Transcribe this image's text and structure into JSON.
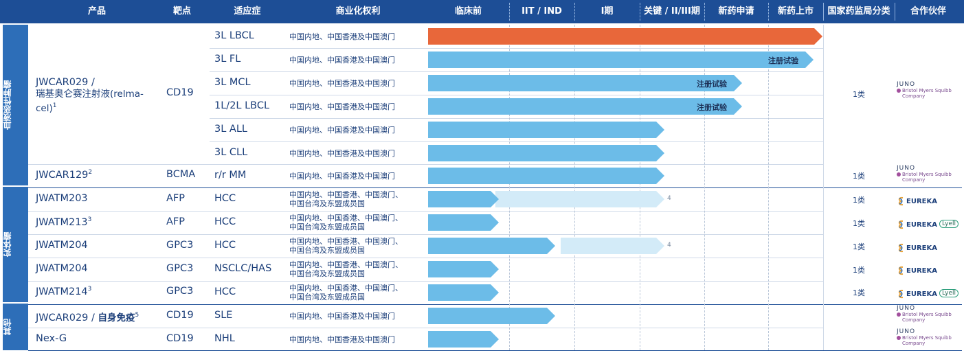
{
  "header": {
    "product": "产品",
    "target": "靶点",
    "indication": "适应症",
    "rights": "商业化权利",
    "nmpa": "国家药监局分类",
    "partner": "合作伙伴",
    "stages": [
      "临床前",
      "IIT / IND",
      "I期",
      "关键 / II/III期",
      "新药申请",
      "新药上市"
    ]
  },
  "categories": [
    {
      "label": "血液恶性肿瘤"
    },
    {
      "label": "实体瘤"
    },
    {
      "label": "其他"
    }
  ],
  "products": {
    "relma_line1": "JWCAR029 /",
    "relma_line2": "瑞基奥仑赛注射液(relma-",
    "relma_line3": "cel)",
    "relma_sup": "1",
    "jwcar129": "JWCAR129",
    "jwcar129_sup": "2",
    "jwatm203": "JWATM203",
    "jwatm213": "JWATM213",
    "jwatm213_sup": "3",
    "jwatm204a": "JWATM204",
    "jwatm204b": "JWATM204",
    "jwatm214": "JWATM214",
    "jwatm214_sup": "3",
    "sle_prefix": "JWCAR029 / ",
    "sle_bold": "自身免疫",
    "sle_sup": "5",
    "nexg": "Nex-G"
  },
  "targets": {
    "cd19": "CD19",
    "bcma": "BCMA",
    "afp1": "AFP",
    "afp2": "AFP",
    "gpc3a": "GPC3",
    "gpc3b": "GPC3",
    "gpc3c": "GPC3",
    "cd19_sle": "CD19",
    "cd19_nexg": "CD19"
  },
  "rows": [
    {
      "indication": "3L LBCL",
      "rights": "中国内地、中国香港及中国澳门",
      "progress_stage": 6,
      "color": "#e8673a",
      "label": ""
    },
    {
      "indication": "3L FL",
      "rights": "中国内地、中国香港及中国澳门",
      "progress_stage": 5,
      "color": "#6cbce8",
      "label": "注册试验"
    },
    {
      "indication": "3L MCL",
      "rights": "中国内地、中国香港及中国澳门",
      "progress_stage": 4,
      "color": "#6cbce8",
      "label": "注册试验"
    },
    {
      "indication": "1L/2L LBCL",
      "rights": "中国内地、中国香港及中国澳门",
      "progress_stage": 4,
      "color": "#6cbce8",
      "label": "注册试验"
    },
    {
      "indication": "3L ALL",
      "rights": "中国内地、中国香港及中国澳门",
      "progress_stage": 3,
      "color": "#6cbce8",
      "label": ""
    },
    {
      "indication": "3L CLL",
      "rights": "中国内地、中国香港及中国澳门",
      "progress_stage": 3,
      "color": "#6cbce8",
      "label": ""
    },
    {
      "indication": "r/r MM",
      "rights": "中国内地、中国香港及中国澳门",
      "progress_stage": 3,
      "color": "#6cbce8",
      "label": ""
    },
    {
      "indication": "HCC",
      "rights": "中国内地、中国香港、中国澳门、\n中国台湾及东盟成员国",
      "progress_stage": 1,
      "color": "#6cbce8",
      "label": "",
      "light_stage": 3,
      "note": "4"
    },
    {
      "indication": "HCC",
      "rights": "中国内地、中国香港、中国澳门、\n中国台湾及东盟成员国",
      "progress_stage": 1,
      "color": "#6cbce8",
      "label": ""
    },
    {
      "indication": "HCC",
      "rights": "中国内地、中国香港、中国澳门、\n中国台湾及东盟成员国",
      "progress_stage": 2,
      "color": "#6cbce8",
      "label": "",
      "light_stage": 3,
      "note": "4"
    },
    {
      "indication": "NSCLC/HAS",
      "rights": "中国内地、中国香港、中国澳门、\n中国台湾及东盟成员国",
      "progress_stage": 1,
      "color": "#6cbce8",
      "label": ""
    },
    {
      "indication": "HCC",
      "rights": "中国内地、中国香港、中国澳门、\n中国台湾及东盟成员国",
      "progress_stage": 1,
      "color": "#6cbce8",
      "label": ""
    },
    {
      "indication": "SLE",
      "rights": "中国内地、中国香港及中国澳门",
      "progress_stage": 2,
      "color": "#6cbce8",
      "label": ""
    },
    {
      "indication": "NHL",
      "rights": "中国内地、中国香港及中国澳门",
      "progress_stage": 1,
      "color": "#6cbce8",
      "label": ""
    }
  ],
  "nmpa": {
    "relma": "1类",
    "jwcar129": "1类",
    "jwatm203": "1类",
    "jwatm213": "1类",
    "jwatm204a": "1类",
    "jwatm204b": "1类",
    "jwatm214": "1类"
  },
  "partners": {
    "juno": "JUNO",
    "bms": "Bristol Myers Squibb",
    "bms_company": "Company",
    "eureka": "EUREKA",
    "lyell": "Lyell"
  },
  "colors": {
    "header": "#1d4e96",
    "category": "#2d6eb8",
    "bar": "#6cbce8",
    "bar_light": "#d3ebf8",
    "approved": "#e8673a"
  }
}
